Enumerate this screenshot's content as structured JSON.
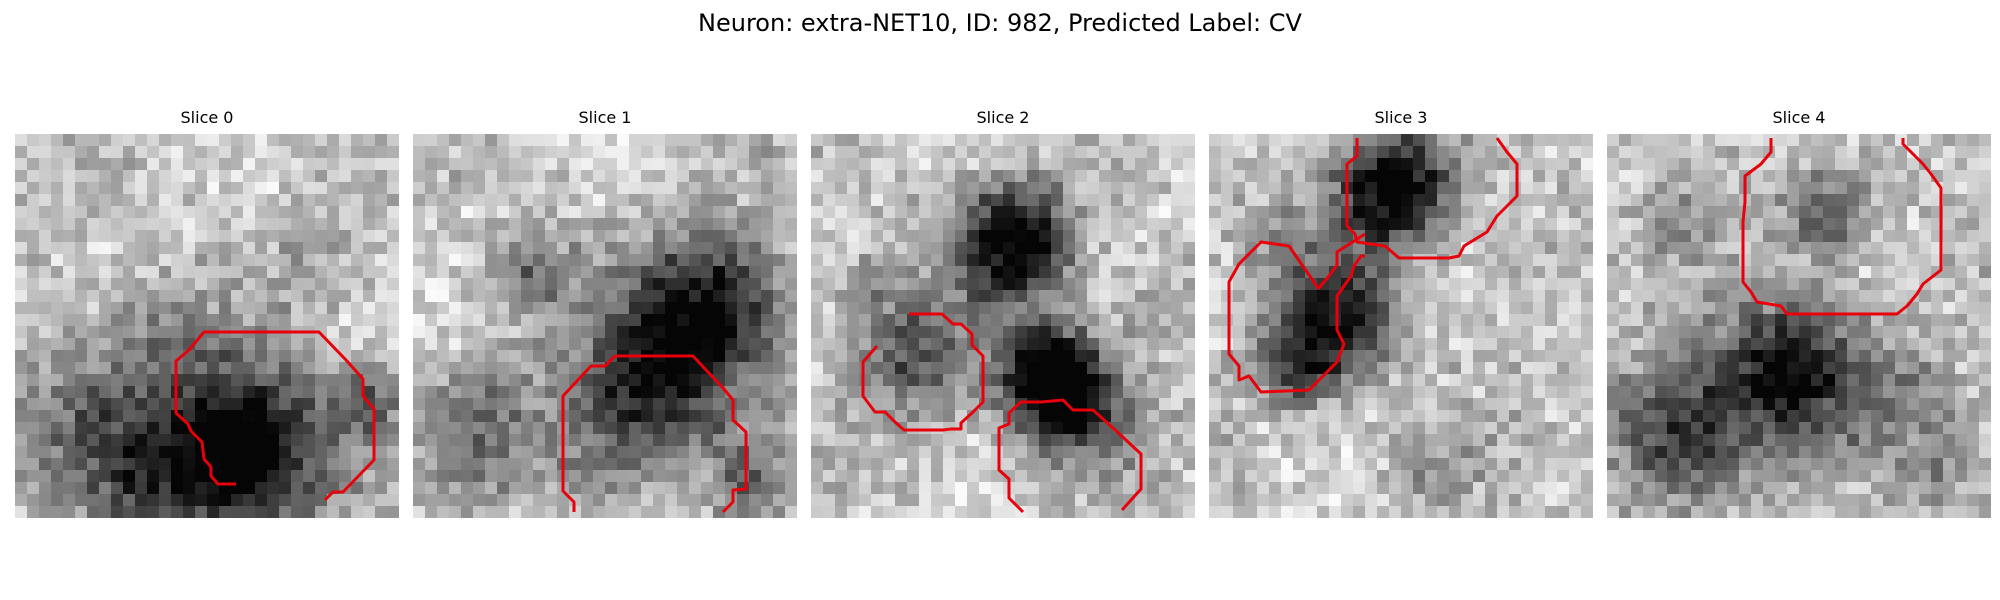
{
  "figure": {
    "title": "Neuron: extra-NET10, ID: 982, Predicted Label: CV"
  },
  "panels": [
    {
      "title": "Slice 0"
    },
    {
      "title": "Slice 1"
    },
    {
      "title": "Slice 2"
    },
    {
      "title": "Slice 3"
    },
    {
      "title": "Slice 4"
    }
  ],
  "colors": {
    "contour": "#e8000b",
    "background": "#ffffff"
  },
  "colormap": "grayscale"
}
